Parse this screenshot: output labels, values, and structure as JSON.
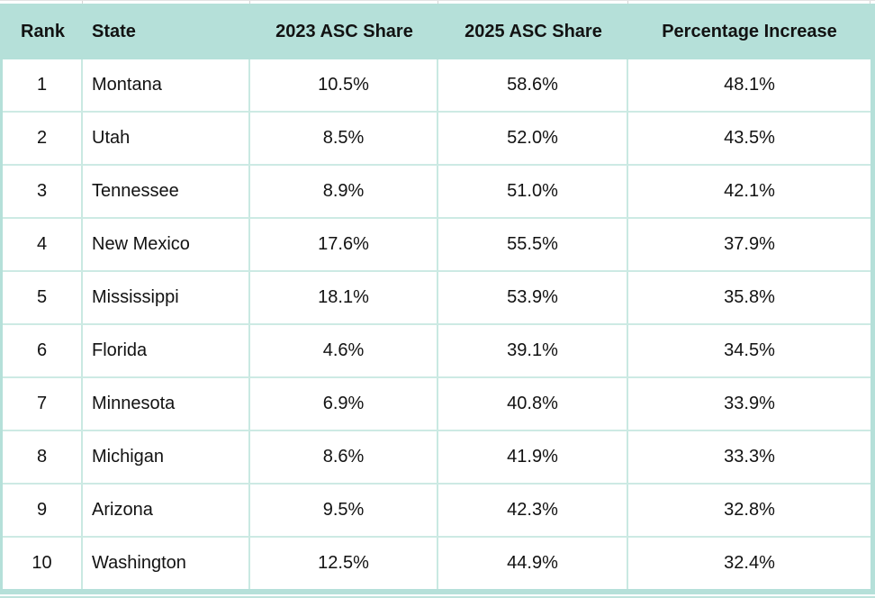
{
  "chart_data": {
    "type": "table",
    "title": "",
    "columns": [
      "Rank",
      "State",
      "2023 ASC Share",
      "2025 ASC Share",
      "Percentage Increase"
    ],
    "rows": [
      [
        "1",
        "Montana",
        "10.5%",
        "58.6%",
        "48.1%"
      ],
      [
        "2",
        "Utah",
        "8.5%",
        "52.0%",
        "43.5%"
      ],
      [
        "3",
        "Tennessee",
        "8.9%",
        "51.0%",
        "42.1%"
      ],
      [
        "4",
        "New Mexico",
        "17.6%",
        "55.5%",
        "37.9%"
      ],
      [
        "5",
        "Mississippi",
        "18.1%",
        "53.9%",
        "35.8%"
      ],
      [
        "6",
        "Florida",
        "4.6%",
        "39.1%",
        "34.5%"
      ],
      [
        "7",
        "Minnesota",
        "6.9%",
        "40.8%",
        "33.9%"
      ],
      [
        "8",
        "Michigan",
        "8.6%",
        "41.9%",
        "33.3%"
      ],
      [
        "9",
        "Arizona",
        "9.5%",
        "42.3%",
        "32.8%"
      ],
      [
        "10",
        "Washington",
        "12.5%",
        "44.9%",
        "32.4%"
      ]
    ]
  },
  "colors": {
    "header_bg": "#b5e0d9",
    "inner_border": "#c9e9e2",
    "row_separator": "#cdeae4",
    "outer_border": "#b5e0d9",
    "cropped_gridline": "#d5d5d5",
    "text": "#121212"
  }
}
